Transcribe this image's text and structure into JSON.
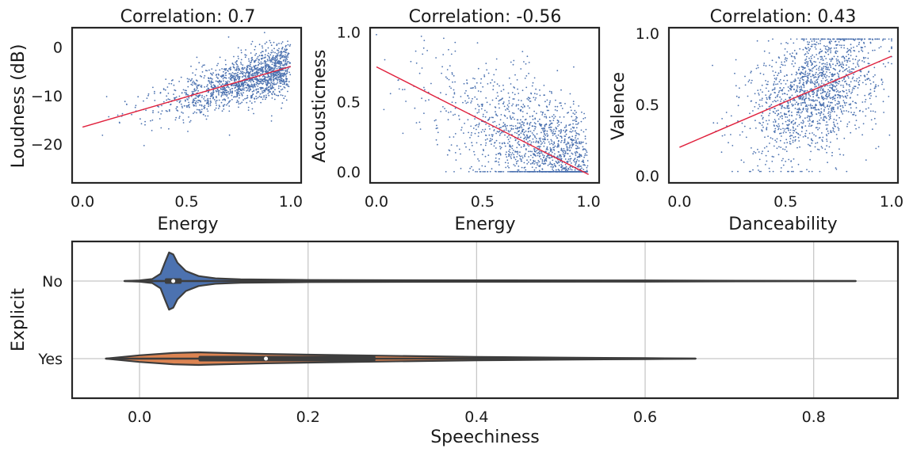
{
  "chart_data": [
    {
      "type": "scatter",
      "title": "Correlation: 0.7",
      "xlabel": "Energy",
      "ylabel": "Loudness (dB)",
      "xlim": [
        -0.05,
        1.05
      ],
      "ylim": [
        -28,
        4
      ],
      "xticks": [
        0.0,
        0.5,
        1.0
      ],
      "xtick_labels": [
        "0.0",
        "0.5",
        "1.0"
      ],
      "yticks": [
        0,
        -10,
        -20
      ],
      "ytick_labels": [
        "0",
        "−10",
        "−20"
      ],
      "trend_line": {
        "x": [
          0.0,
          1.0
        ],
        "y": [
          -16.5,
          -4.0
        ]
      },
      "point_cloud": {
        "x_center": 0.6,
        "x_spread": 0.2,
        "x_range": [
          0.0,
          1.0
        ],
        "noise": 2.5,
        "y_range": [
          -26,
          3
        ],
        "n": 1600,
        "x_skew": "left"
      },
      "colors": {
        "points": "#4c72b0",
        "trend": "#e0203c"
      }
    },
    {
      "type": "scatter",
      "title": "Correlation: -0.56",
      "xlabel": "Energy",
      "ylabel": "Acousticness",
      "xlim": [
        -0.03,
        1.05
      ],
      "ylim": [
        -0.08,
        1.03
      ],
      "xticks": [
        0.0,
        0.5,
        1.0
      ],
      "xtick_labels": [
        "0.0",
        "0.5",
        "1.0"
      ],
      "yticks": [
        0.0,
        0.5,
        1.0
      ],
      "ytick_labels": [
        "0.0",
        "0.5",
        "1.0"
      ],
      "trend_line": {
        "x": [
          0.0,
          1.0
        ],
        "y": [
          0.75,
          -0.02
        ]
      },
      "point_cloud": {
        "x_center": 0.6,
        "x_spread": 0.22,
        "x_range": [
          0.0,
          1.0
        ],
        "noise": 0.22,
        "y_range": [
          0.0,
          0.98
        ],
        "n": 1600,
        "x_skew": "left"
      },
      "colors": {
        "points": "#4c72b0",
        "trend": "#e0203c"
      }
    },
    {
      "type": "scatter",
      "title": "Correlation: 0.43",
      "xlabel": "Danceability",
      "ylabel": "Valence",
      "xlim": [
        -0.05,
        1.03
      ],
      "ylim": [
        -0.05,
        1.04
      ],
      "xticks": [
        0.0,
        0.5,
        1.0
      ],
      "xtick_labels": [
        "0.0",
        "0.5",
        "1.0"
      ],
      "yticks": [
        0.0,
        0.5,
        1.0
      ],
      "ytick_labels": [
        "0.0",
        "0.5",
        "1.0"
      ],
      "trend_line": {
        "x": [
          0.0,
          1.0
        ],
        "y": [
          0.2,
          0.84
        ]
      },
      "point_cloud": {
        "x_center": 0.64,
        "x_spread": 0.15,
        "x_range": [
          0.0,
          1.0
        ],
        "noise": 0.22,
        "y_range": [
          0.03,
          0.96
        ],
        "n": 1600,
        "x_skew": "none"
      },
      "colors": {
        "points": "#4c72b0",
        "trend": "#e0203c"
      }
    },
    {
      "type": "violin",
      "xlabel": "Speechiness",
      "ylabel": "Explicit",
      "xlim": [
        -0.08,
        0.9
      ],
      "xticks": [
        0.0,
        0.2,
        0.4,
        0.6,
        0.8
      ],
      "xtick_labels": [
        "0.0",
        "0.2",
        "0.4",
        "0.6",
        "0.8"
      ],
      "grid": true,
      "categories": [
        "No",
        "Yes"
      ],
      "violins": [
        {
          "name": "No",
          "color": "#4c72b0",
          "whisker": [
            -0.018,
            0.85
          ],
          "iqr": [
            0.03,
            0.05
          ],
          "median": 0.04,
          "density": [
            [
              -0.018,
              0.0
            ],
            [
              0.0,
              0.02
            ],
            [
              0.015,
              0.06
            ],
            [
              0.025,
              0.22
            ],
            [
              0.03,
              0.55
            ],
            [
              0.035,
              0.86
            ],
            [
              0.04,
              0.8
            ],
            [
              0.045,
              0.55
            ],
            [
              0.055,
              0.3
            ],
            [
              0.07,
              0.15
            ],
            [
              0.09,
              0.08
            ],
            [
              0.12,
              0.05
            ],
            [
              0.2,
              0.03
            ],
            [
              0.4,
              0.022
            ],
            [
              0.6,
              0.02
            ],
            [
              0.85,
              0.0
            ]
          ]
        },
        {
          "name": "Yes",
          "color": "#dd8452",
          "whisker": [
            -0.04,
            0.66
          ],
          "iqr": [
            0.07,
            0.28
          ],
          "median": 0.15,
          "density": [
            [
              -0.04,
              0.0
            ],
            [
              0.0,
              0.1
            ],
            [
              0.04,
              0.17
            ],
            [
              0.07,
              0.19
            ],
            [
              0.1,
              0.17
            ],
            [
              0.15,
              0.14
            ],
            [
              0.2,
              0.12
            ],
            [
              0.28,
              0.09
            ],
            [
              0.4,
              0.05
            ],
            [
              0.5,
              0.03
            ],
            [
              0.6,
              0.015
            ],
            [
              0.66,
              0.0
            ]
          ]
        }
      ],
      "colors": {
        "inner": "#3d3d3d",
        "median": "#ffffff"
      }
    }
  ]
}
